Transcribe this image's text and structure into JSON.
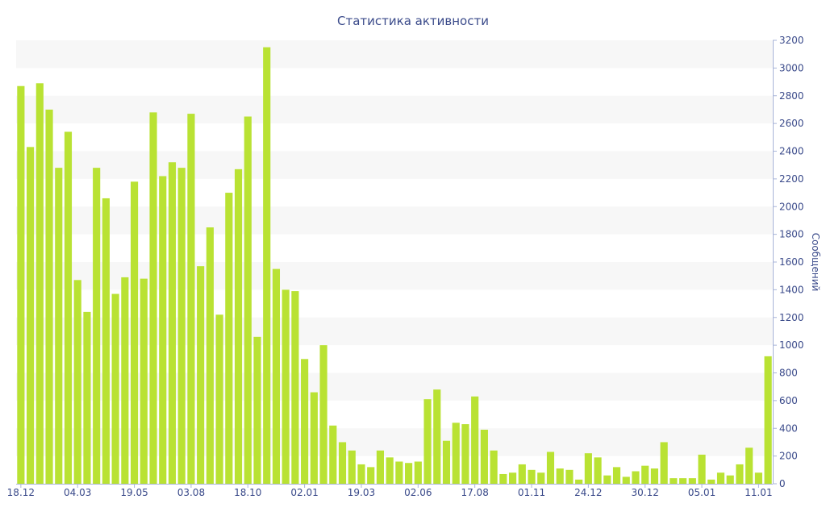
{
  "chart_data": {
    "type": "bar",
    "title": "Статистика активности",
    "xlabel": "",
    "ylabel": "Сообщений",
    "y_axis_position": "right",
    "ylim": [
      0,
      3200
    ],
    "y_ticks": [
      0,
      200,
      400,
      600,
      800,
      1000,
      1200,
      1400,
      1600,
      1800,
      2000,
      2200,
      2400,
      2600,
      2800,
      3000,
      3200
    ],
    "grid": "alternating horizontal bands",
    "bar_color": "#b9e233",
    "band_color": "#f7f7f7",
    "text_color": "#3a4a8a",
    "x_tick_labels": [
      {
        "index": 0,
        "label": "18.12"
      },
      {
        "index": 6,
        "label": "04.03"
      },
      {
        "index": 12,
        "label": "19.05"
      },
      {
        "index": 18,
        "label": "03.08"
      },
      {
        "index": 24,
        "label": "18.10"
      },
      {
        "index": 30,
        "label": "02.01"
      },
      {
        "index": 36,
        "label": "19.03"
      },
      {
        "index": 42,
        "label": "02.06"
      },
      {
        "index": 48,
        "label": "17.08"
      },
      {
        "index": 54,
        "label": "01.11"
      },
      {
        "index": 60,
        "label": "24.12"
      },
      {
        "index": 66,
        "label": "30.12"
      },
      {
        "index": 72,
        "label": "05.01"
      },
      {
        "index": 78,
        "label": "11.01"
      }
    ],
    "values": [
      2870,
      2430,
      2890,
      2700,
      2280,
      2540,
      1470,
      1240,
      2280,
      2060,
      1370,
      1490,
      2180,
      1480,
      2680,
      2220,
      2320,
      2280,
      2670,
      1570,
      1850,
      1220,
      2100,
      2270,
      2650,
      1060,
      3150,
      1550,
      1400,
      1390,
      900,
      660,
      1000,
      420,
      300,
      240,
      140,
      120,
      240,
      190,
      160,
      150,
      160,
      610,
      680,
      310,
      440,
      430,
      630,
      390,
      240,
      70,
      80,
      140,
      100,
      80,
      230,
      110,
      100,
      30,
      220,
      190,
      60,
      120,
      50,
      90,
      130,
      110,
      300,
      40,
      40,
      40,
      210,
      30,
      80,
      60,
      140,
      260,
      80,
      920
    ]
  }
}
